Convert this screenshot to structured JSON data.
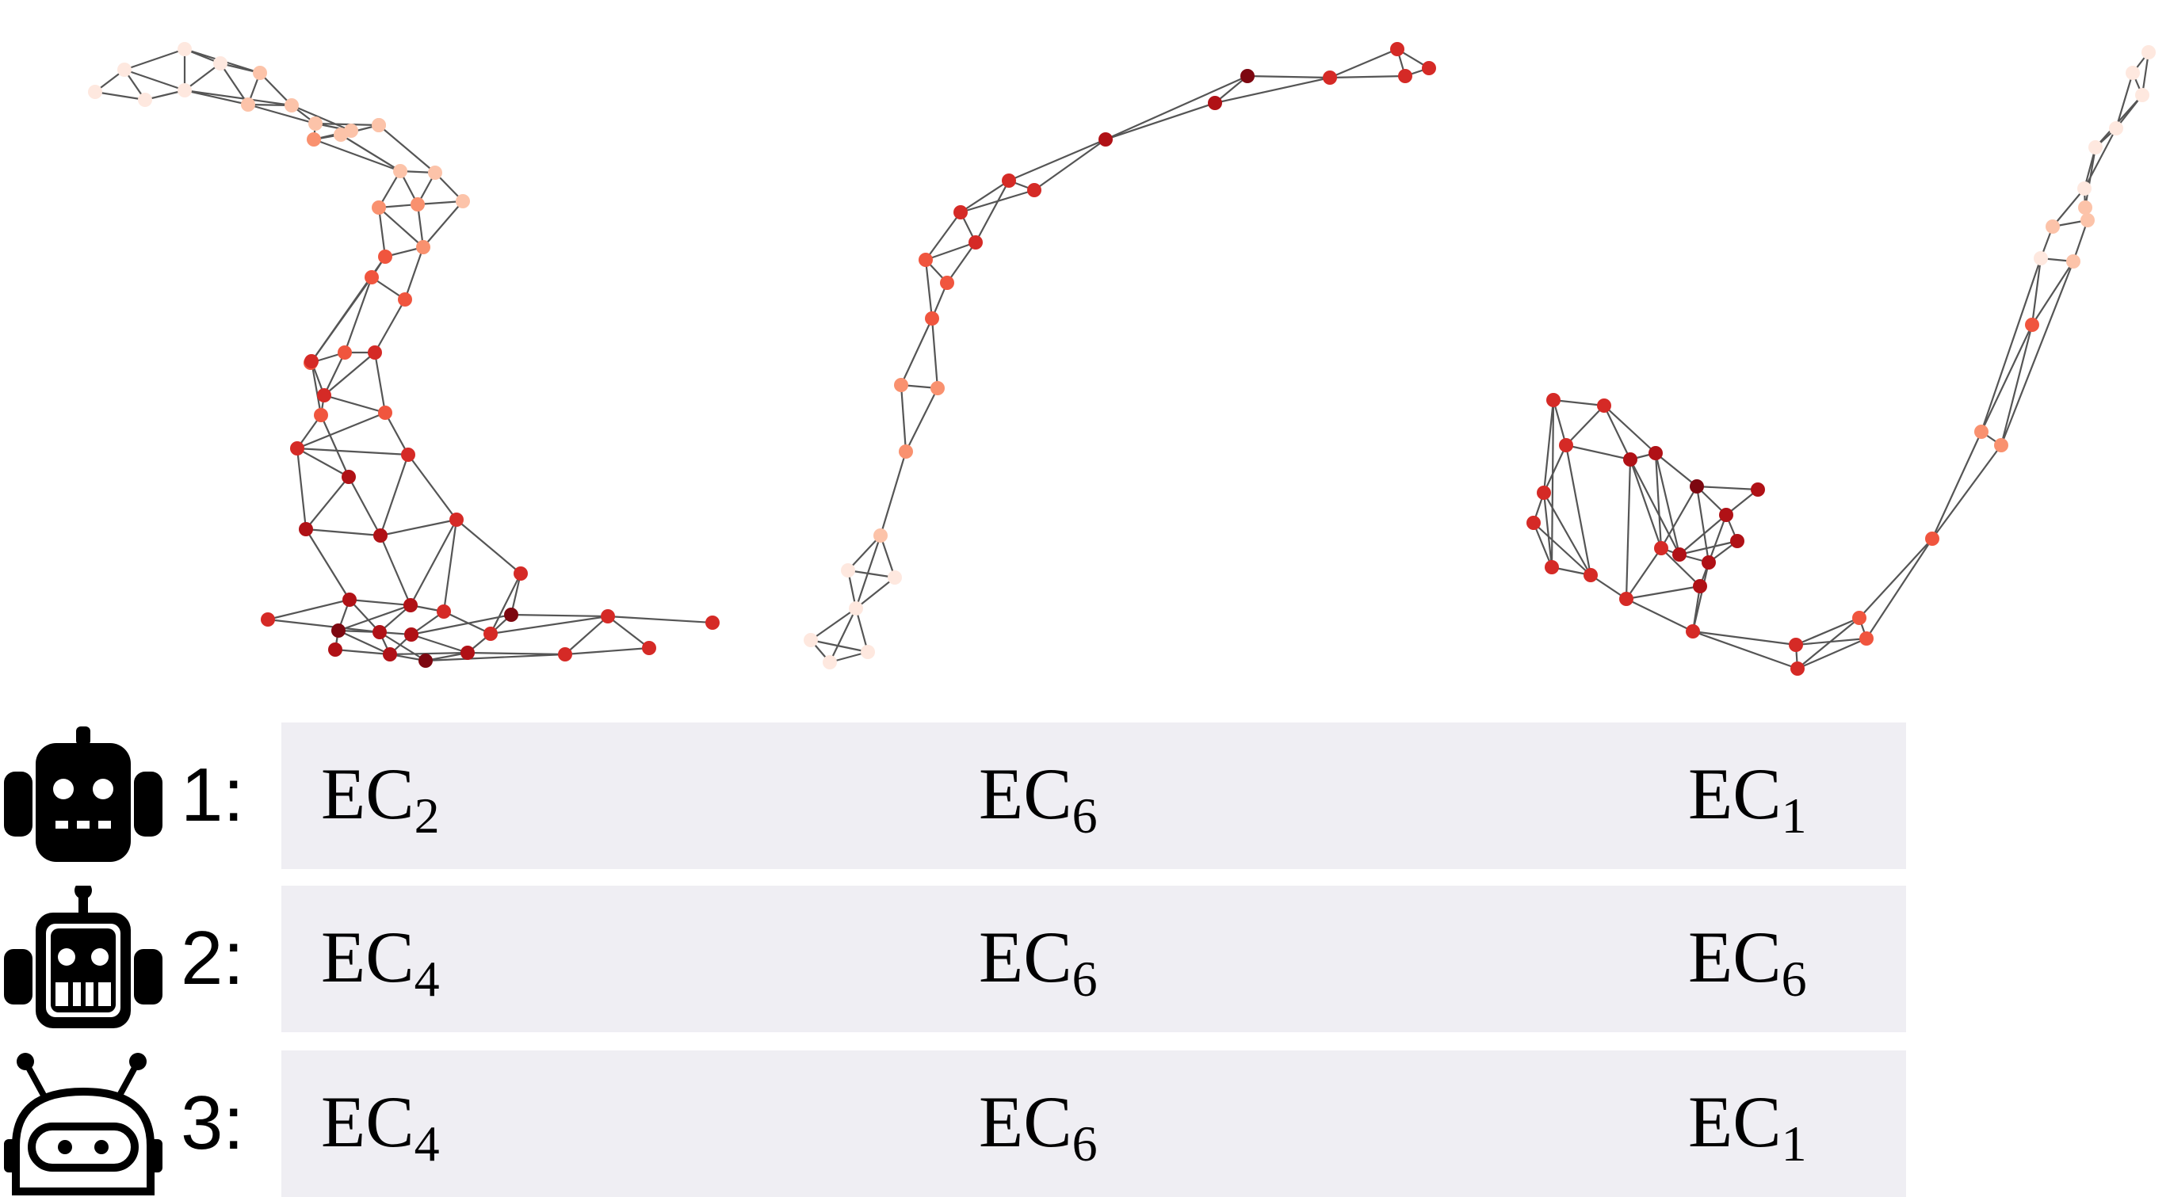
{
  "graph_node_colors": [
    "#fee8df",
    "#fcc3a9",
    "#f9916f",
    "#f0553e",
    "#d52a26",
    "#b01116",
    "#7d0710"
  ],
  "graphs": [
    {
      "name": "graph-1",
      "nodes": [
        [
          120,
          116,
          0
        ],
        [
          157,
          88,
          0
        ],
        [
          233,
          62,
          0
        ],
        [
          278,
          80,
          0
        ],
        [
          328,
          92,
          1
        ],
        [
          183,
          126,
          0
        ],
        [
          233,
          114,
          0
        ],
        [
          313,
          132,
          1
        ],
        [
          368,
          133,
          1
        ],
        [
          398,
          156,
          1
        ],
        [
          443,
          165,
          1
        ],
        [
          478,
          158,
          1
        ],
        [
          396,
          176,
          2
        ],
        [
          430,
          170,
          1
        ],
        [
          478,
          158,
          1
        ],
        [
          505,
          216,
          1
        ],
        [
          549,
          218,
          1
        ],
        [
          527,
          258,
          2
        ],
        [
          584,
          254,
          1
        ],
        [
          478,
          262,
          2
        ],
        [
          534,
          312,
          2
        ],
        [
          486,
          324,
          3
        ],
        [
          469,
          350,
          3
        ],
        [
          511,
          378,
          3
        ],
        [
          392,
          458,
          3
        ],
        [
          435,
          445,
          3
        ],
        [
          473,
          445,
          4
        ],
        [
          393,
          456,
          4
        ],
        [
          409,
          499,
          4
        ],
        [
          486,
          521,
          3
        ],
        [
          405,
          524,
          3
        ],
        [
          375,
          566,
          4
        ],
        [
          515,
          574,
          4
        ],
        [
          440,
          602,
          5
        ],
        [
          386,
          668,
          5
        ],
        [
          480,
          676,
          5
        ],
        [
          576,
          656,
          4
        ],
        [
          657,
          724,
          4
        ],
        [
          338,
          782,
          4
        ],
        [
          441,
          757,
          5
        ],
        [
          518,
          764,
          5
        ],
        [
          560,
          772,
          4
        ],
        [
          619,
          800,
          4
        ],
        [
          645,
          776,
          6
        ],
        [
          767,
          778,
          4
        ],
        [
          899,
          786,
          4
        ],
        [
          427,
          796,
          6
        ],
        [
          479,
          798,
          5
        ],
        [
          519,
          801,
          5
        ],
        [
          590,
          824,
          5
        ],
        [
          537,
          834,
          6
        ],
        [
          423,
          820,
          5
        ],
        [
          492,
          826,
          5
        ],
        [
          713,
          826,
          4
        ],
        [
          819,
          818,
          4
        ]
      ],
      "edges": [
        [
          0,
          1
        ],
        [
          1,
          2
        ],
        [
          2,
          3
        ],
        [
          3,
          4
        ],
        [
          0,
          5
        ],
        [
          5,
          6
        ],
        [
          6,
          7
        ],
        [
          1,
          5
        ],
        [
          1,
          6
        ],
        [
          2,
          4
        ],
        [
          2,
          6
        ],
        [
          3,
          6
        ],
        [
          3,
          7
        ],
        [
          4,
          7
        ],
        [
          4,
          8
        ],
        [
          6,
          8
        ],
        [
          7,
          8
        ],
        [
          7,
          9
        ],
        [
          8,
          9
        ],
        [
          8,
          10
        ],
        [
          9,
          10
        ],
        [
          9,
          11
        ],
        [
          10,
          12
        ],
        [
          9,
          12
        ],
        [
          10,
          13
        ],
        [
          11,
          13
        ],
        [
          12,
          13
        ],
        [
          12,
          15
        ],
        [
          13,
          15
        ],
        [
          11,
          16
        ],
        [
          15,
          16
        ],
        [
          16,
          17
        ],
        [
          15,
          17
        ],
        [
          16,
          18
        ],
        [
          17,
          18
        ],
        [
          17,
          19
        ],
        [
          15,
          19
        ],
        [
          19,
          20
        ],
        [
          17,
          20
        ],
        [
          18,
          20
        ],
        [
          20,
          21
        ],
        [
          19,
          21
        ],
        [
          21,
          22
        ],
        [
          20,
          23
        ],
        [
          22,
          23
        ],
        [
          21,
          24
        ],
        [
          22,
          24
        ],
        [
          22,
          25
        ],
        [
          23,
          26
        ],
        [
          24,
          25
        ],
        [
          25,
          26
        ],
        [
          24,
          27
        ],
        [
          25,
          28
        ],
        [
          26,
          28
        ],
        [
          27,
          28
        ],
        [
          27,
          30
        ],
        [
          28,
          30
        ],
        [
          26,
          29
        ],
        [
          28,
          29
        ],
        [
          29,
          31
        ],
        [
          30,
          31
        ],
        [
          31,
          32
        ],
        [
          29,
          32
        ],
        [
          31,
          33
        ],
        [
          30,
          33
        ],
        [
          33,
          34
        ],
        [
          31,
          34
        ],
        [
          33,
          35
        ],
        [
          32,
          35
        ],
        [
          34,
          35
        ],
        [
          35,
          36
        ],
        [
          32,
          36
        ],
        [
          36,
          37
        ],
        [
          34,
          39
        ],
        [
          35,
          40
        ],
        [
          36,
          40
        ],
        [
          36,
          41
        ],
        [
          37,
          42
        ],
        [
          37,
          43
        ],
        [
          39,
          40
        ],
        [
          40,
          41
        ],
        [
          38,
          39
        ],
        [
          39,
          46
        ],
        [
          40,
          47
        ],
        [
          41,
          48
        ],
        [
          42,
          43
        ],
        [
          43,
          44
        ],
        [
          44,
          45
        ],
        [
          42,
          44
        ],
        [
          44,
          53
        ],
        [
          43,
          48
        ],
        [
          41,
          42
        ],
        [
          46,
          47
        ],
        [
          47,
          48
        ],
        [
          48,
          49
        ],
        [
          49,
          50
        ],
        [
          50,
          47
        ],
        [
          46,
          51
        ],
        [
          51,
          52
        ],
        [
          52,
          50
        ],
        [
          46,
          52
        ],
        [
          47,
          52
        ],
        [
          48,
          52
        ],
        [
          49,
          53
        ],
        [
          53,
          54
        ],
        [
          44,
          54
        ],
        [
          49,
          42
        ],
        [
          39,
          47
        ],
        [
          38,
          47
        ],
        [
          46,
          40
        ],
        [
          51,
          46
        ],
        [
          52,
          49
        ],
        [
          50,
          53
        ]
      ]
    },
    {
      "name": "graph-2",
      "nodes": [
        [
          1763,
          62,
          4
        ],
        [
          1773,
          96,
          4
        ],
        [
          1803,
          86,
          4
        ],
        [
          1678,
          98,
          4
        ],
        [
          1574,
          96,
          6
        ],
        [
          1533,
          130,
          5
        ],
        [
          1395,
          176,
          5
        ],
        [
          1305,
          240,
          4
        ],
        [
          1273,
          228,
          4
        ],
        [
          1212,
          268,
          4
        ],
        [
          1231,
          306,
          4
        ],
        [
          1168,
          328,
          3
        ],
        [
          1195,
          357,
          3
        ],
        [
          1176,
          402,
          3
        ],
        [
          1137,
          486,
          2
        ],
        [
          1183,
          490,
          2
        ],
        [
          1143,
          570,
          2
        ],
        [
          1111,
          676,
          1
        ],
        [
          1070,
          720,
          0
        ],
        [
          1129,
          729,
          0
        ],
        [
          1080,
          768,
          0
        ],
        [
          1023,
          808,
          0
        ],
        [
          1047,
          836,
          0
        ],
        [
          1095,
          823,
          0
        ]
      ],
      "edges": [
        [
          0,
          1
        ],
        [
          0,
          2
        ],
        [
          1,
          2
        ],
        [
          0,
          3
        ],
        [
          1,
          3
        ],
        [
          3,
          4
        ],
        [
          3,
          5
        ],
        [
          4,
          5
        ],
        [
          4,
          6
        ],
        [
          5,
          6
        ],
        [
          6,
          7
        ],
        [
          6,
          8
        ],
        [
          7,
          8
        ],
        [
          7,
          9
        ],
        [
          8,
          9
        ],
        [
          8,
          10
        ],
        [
          9,
          10
        ],
        [
          9,
          11
        ],
        [
          10,
          11
        ],
        [
          10,
          12
        ],
        [
          11,
          12
        ],
        [
          11,
          13
        ],
        [
          12,
          13
        ],
        [
          13,
          14
        ],
        [
          13,
          15
        ],
        [
          14,
          15
        ],
        [
          14,
          16
        ],
        [
          15,
          16
        ],
        [
          16,
          17
        ],
        [
          17,
          18
        ],
        [
          17,
          19
        ],
        [
          18,
          19
        ],
        [
          18,
          20
        ],
        [
          19,
          20
        ],
        [
          20,
          21
        ],
        [
          20,
          22
        ],
        [
          20,
          23
        ],
        [
          21,
          22
        ],
        [
          22,
          23
        ],
        [
          21,
          23
        ],
        [
          17,
          20
        ]
      ]
    },
    {
      "name": "graph-3",
      "nodes": [
        [
          2711,
          66,
          0
        ],
        [
          2691,
          92,
          0
        ],
        [
          2703,
          120,
          0
        ],
        [
          2670,
          162,
          0
        ],
        [
          2644,
          186,
          0
        ],
        [
          2630,
          238,
          0
        ],
        [
          2631,
          262,
          1
        ],
        [
          2590,
          286,
          1
        ],
        [
          2634,
          278,
          1
        ],
        [
          2575,
          326,
          0
        ],
        [
          2616,
          330,
          1
        ],
        [
          2564,
          410,
          3
        ],
        [
          2500,
          545,
          2
        ],
        [
          2525,
          562,
          2
        ],
        [
          2438,
          680,
          3
        ],
        [
          1960,
          505,
          4
        ],
        [
          2024,
          512,
          4
        ],
        [
          1976,
          562,
          4
        ],
        [
          2057,
          580,
          5
        ],
        [
          2089,
          572,
          5
        ],
        [
          1948,
          622,
          4
        ],
        [
          1935,
          660,
          4
        ],
        [
          2141,
          614,
          6
        ],
        [
          2218,
          618,
          5
        ],
        [
          2178,
          650,
          5
        ],
        [
          2192,
          683,
          5
        ],
        [
          2096,
          692,
          4
        ],
        [
          2119,
          700,
          5
        ],
        [
          2156,
          710,
          5
        ],
        [
          2145,
          740,
          5
        ],
        [
          1958,
          716,
          4
        ],
        [
          2007,
          726,
          4
        ],
        [
          2052,
          756,
          4
        ],
        [
          2136,
          797,
          4
        ],
        [
          2266,
          814,
          4
        ],
        [
          2346,
          780,
          3
        ],
        [
          2355,
          806,
          3
        ],
        [
          2268,
          844,
          4
        ]
      ],
      "edges": [
        [
          0,
          1
        ],
        [
          0,
          2
        ],
        [
          1,
          2
        ],
        [
          1,
          3
        ],
        [
          2,
          3
        ],
        [
          2,
          4
        ],
        [
          3,
          4
        ],
        [
          3,
          5
        ],
        [
          4,
          5
        ],
        [
          4,
          6
        ],
        [
          5,
          6
        ],
        [
          5,
          7
        ],
        [
          6,
          8
        ],
        [
          7,
          8
        ],
        [
          7,
          9
        ],
        [
          8,
          10
        ],
        [
          9,
          10
        ],
        [
          9,
          11
        ],
        [
          10,
          11
        ],
        [
          9,
          12
        ],
        [
          10,
          13
        ],
        [
          11,
          12
        ],
        [
          11,
          13
        ],
        [
          12,
          13
        ],
        [
          12,
          14
        ],
        [
          13,
          14
        ],
        [
          14,
          35
        ],
        [
          14,
          36
        ],
        [
          35,
          36
        ],
        [
          35,
          37
        ],
        [
          36,
          37
        ],
        [
          34,
          35
        ],
        [
          34,
          36
        ],
        [
          34,
          37
        ],
        [
          33,
          34
        ],
        [
          33,
          37
        ],
        [
          32,
          33
        ],
        [
          29,
          33
        ],
        [
          28,
          33
        ],
        [
          15,
          16
        ],
        [
          15,
          17
        ],
        [
          16,
          17
        ],
        [
          16,
          18
        ],
        [
          17,
          18
        ],
        [
          18,
          19
        ],
        [
          15,
          20
        ],
        [
          17,
          20
        ],
        [
          20,
          21
        ],
        [
          20,
          30
        ],
        [
          21,
          30
        ],
        [
          30,
          31
        ],
        [
          31,
          32
        ],
        [
          21,
          31
        ],
        [
          17,
          31
        ],
        [
          18,
          26
        ],
        [
          18,
          32
        ],
        [
          19,
          22
        ],
        [
          19,
          27
        ],
        [
          22,
          23
        ],
        [
          22,
          24
        ],
        [
          23,
          24
        ],
        [
          24,
          25
        ],
        [
          22,
          26
        ],
        [
          26,
          27
        ],
        [
          27,
          28
        ],
        [
          28,
          29
        ],
        [
          26,
          29
        ],
        [
          24,
          28
        ],
        [
          25,
          28
        ],
        [
          25,
          27
        ],
        [
          19,
          26
        ],
        [
          26,
          32
        ],
        [
          29,
          32
        ],
        [
          18,
          27
        ],
        [
          16,
          19
        ],
        [
          24,
          27
        ],
        [
          22,
          28
        ],
        [
          15,
          30
        ],
        [
          20,
          31
        ]
      ]
    }
  ],
  "rows": [
    {
      "label": "1:",
      "robot": "robot-1-icon",
      "entries": [
        {
          "base": "EC",
          "sub": "2"
        },
        {
          "base": "EC",
          "sub": "6"
        },
        {
          "base": "EC",
          "sub": "1"
        }
      ]
    },
    {
      "label": "2:",
      "robot": "robot-2-icon",
      "entries": [
        {
          "base": "EC",
          "sub": "4"
        },
        {
          "base": "EC",
          "sub": "6"
        },
        {
          "base": "EC",
          "sub": "6"
        }
      ]
    },
    {
      "label": "3:",
      "robot": "robot-3-icon",
      "entries": [
        {
          "base": "EC",
          "sub": "4"
        },
        {
          "base": "EC",
          "sub": "6"
        },
        {
          "base": "EC",
          "sub": "1"
        }
      ]
    }
  ]
}
